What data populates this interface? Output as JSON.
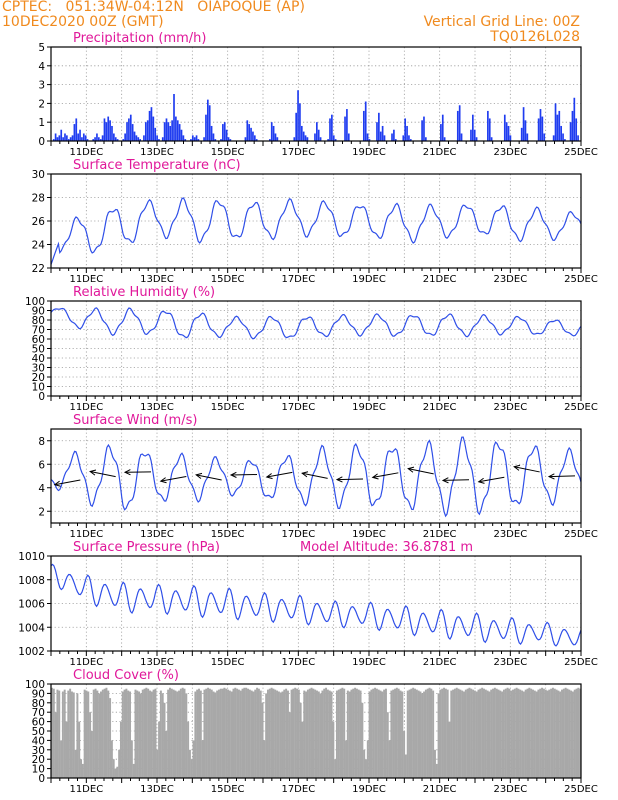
{
  "header": {
    "line1": "CPTEC:   051:34W-04:12N   OIAPOQUE (AP)",
    "line2": "10DEC2020 00Z (GMT)",
    "grid_note": "Vertical Grid Line: 00Z",
    "run_id": "TQ0126L028"
  },
  "colors": {
    "header": "#f08a1e",
    "panel_title": "#e0189a",
    "line": "#2f4fe8",
    "bar": "#1f3cf0",
    "cloud": "#a8a8a8",
    "arrow": "#000000"
  },
  "chart_data": [
    {
      "id": "precip",
      "type": "bar",
      "title": "Precipitation (mm/h)",
      "ylim": [
        0,
        5
      ],
      "yticks": [
        0,
        1,
        2,
        3,
        4,
        5
      ],
      "x_range_days": [
        10,
        25
      ],
      "date_labels": [
        "11DEC",
        "13DEC",
        "15DEC",
        "17DEC",
        "19DEC",
        "21DEC",
        "23DEC",
        "25DEC"
      ],
      "grid": true,
      "values": [
        0,
        0.1,
        0.4,
        0.2,
        0.3,
        0.6,
        0.2,
        0.4,
        0.3,
        0.1,
        0.2,
        0.3,
        0.9,
        1.2,
        0.4,
        0.6,
        0.2,
        0.4,
        0.3,
        0.1,
        0,
        0,
        0.1,
        0.2,
        0.4,
        0.2,
        0.1,
        0.3,
        1.2,
        1.0,
        1.3,
        1.1,
        0.8,
        0.4,
        0.2,
        0.1,
        0,
        0,
        0.1,
        0.4,
        1.0,
        1.2,
        1.4,
        0.9,
        0.5,
        0.3,
        0.2,
        0.1,
        0,
        0.3,
        1.0,
        1.1,
        1.6,
        1.8,
        1.3,
        0.7,
        0.3,
        0.1,
        0,
        0.2,
        1.0,
        1.2,
        1.0,
        0.8,
        1.1,
        2.5,
        1.3,
        1.1,
        0.9,
        0.6,
        0.3,
        0.1,
        0,
        0,
        0.1,
        0.3,
        0.2,
        0.3,
        0.1,
        0,
        0,
        0.2,
        1.4,
        2.2,
        1.9,
        0.8,
        0.4,
        0.1,
        0,
        0,
        0.1,
        0.9,
        1.0,
        0.6,
        0.2,
        0.1,
        0,
        0,
        0,
        0,
        0,
        0,
        0,
        0.2,
        1.1,
        0.9,
        0.7,
        0.5,
        0.3,
        0.1,
        0,
        0,
        0,
        0,
        0,
        0,
        0.1,
        1.0,
        0.8,
        0.4,
        0.2,
        0,
        0,
        0,
        0,
        0,
        0,
        0,
        0,
        0.2,
        1.5,
        2.7,
        2.0,
        0.8,
        0.5,
        0.3,
        0.2,
        0,
        0,
        0,
        0.4,
        1.0,
        0.6,
        0.2,
        0,
        0,
        0,
        0.1,
        1.2,
        1.4,
        0.3,
        0.1,
        0,
        0,
        0,
        0,
        1.3,
        1.7,
        0.4,
        0,
        0,
        0,
        0,
        0,
        0,
        0,
        1.6,
        2.1,
        0.4,
        0.1,
        0,
        0,
        0,
        1.0,
        1.5,
        0.5,
        0.8,
        0.3,
        0,
        0,
        0,
        0.4,
        0.6,
        0.1,
        0,
        0,
        0,
        0.3,
        1.2,
        0.8,
        0.3,
        0.1,
        0,
        0,
        0,
        0,
        0,
        1.1,
        1.3,
        0.2,
        0,
        0,
        0,
        0,
        0,
        0,
        0,
        0.9,
        1.4,
        0.2,
        0,
        0,
        0,
        0,
        0,
        0,
        1.6,
        1.9,
        0.4,
        0,
        0,
        0,
        0,
        0.6,
        1.4,
        0.6,
        0.2,
        0,
        0,
        0,
        0,
        0,
        1.6,
        1.2,
        0.2,
        0,
        0,
        0,
        0,
        0,
        0,
        1.4,
        1.0,
        0.8,
        0.3,
        0,
        0,
        0,
        0,
        0,
        0.7,
        1.8,
        1.1,
        0.4,
        0,
        0,
        0,
        0,
        0,
        1.2,
        1.7,
        1.3,
        0.4,
        0,
        0,
        0,
        0,
        0.3,
        2.0,
        1.4,
        1.6,
        0.8,
        0.4,
        0.1,
        0,
        0,
        1.0,
        1.6,
        2.3,
        1.2,
        0.3,
        0
      ]
    },
    {
      "id": "temp",
      "type": "line",
      "title": "Surface Temperature (nC)",
      "ylim": [
        22,
        30
      ],
      "yticks": [
        22,
        24,
        26,
        28,
        30
      ],
      "x_range_days": [
        10,
        25
      ],
      "date_labels": [
        "11DEC",
        "13DEC",
        "15DEC",
        "17DEC",
        "19DEC",
        "21DEC",
        "23DEC",
        "25DEC"
      ],
      "grid": true,
      "base": [
        24.6,
        24.8,
        25.6,
        26.3,
        26.0,
        26.1,
        26.0,
        26.3,
        26.1,
        26.0,
        25.8,
        25.9,
        26.2,
        25.8,
        25.7,
        25.6
      ],
      "amplitude": [
        1.0,
        1.6,
        1.7,
        1.4,
        1.7,
        1.6,
        1.5,
        1.4,
        1.4,
        1.3,
        1.5,
        1.3,
        1.2,
        1.4,
        1.2,
        1.0
      ],
      "offset_hours": 18
    },
    {
      "id": "rh",
      "type": "line",
      "title": "Relative Humidity (%)",
      "ylim": [
        0,
        100
      ],
      "yticks": [
        0,
        10,
        20,
        30,
        40,
        50,
        60,
        70,
        80,
        90,
        100
      ],
      "x_range_days": [
        10,
        25
      ],
      "date_labels": [
        "11DEC",
        "13DEC",
        "15DEC",
        "17DEC",
        "19DEC",
        "21DEC",
        "23DEC",
        "25DEC"
      ],
      "grid": true,
      "base": [
        88,
        80,
        78,
        78,
        74,
        73,
        72,
        72,
        74,
        75,
        74,
        75,
        74,
        75,
        72,
        72
      ],
      "amplitude": [
        5,
        11,
        13,
        12,
        14,
        9,
        11,
        11,
        10,
        10,
        11,
        11,
        10,
        9,
        8,
        8
      ],
      "offset_hours": 6
    },
    {
      "id": "wind",
      "type": "line",
      "title": "Surface Wind (m/s)",
      "ylim": [
        1,
        9
      ],
      "yticks": [
        2,
        4,
        6,
        8
      ],
      "x_range_days": [
        10,
        25
      ],
      "date_labels": [
        "11DEC",
        "13DEC",
        "15DEC",
        "17DEC",
        "19DEC",
        "21DEC",
        "23DEC",
        "25DEC"
      ],
      "grid": true,
      "base": [
        5.2,
        5.0,
        4.8,
        4.9,
        4.8,
        4.9,
        4.7,
        4.8,
        5.0,
        5.0,
        4.9,
        4.9,
        5.0,
        5.1,
        5.0,
        5.1
      ],
      "amplitude": [
        1.0,
        2.1,
        2.7,
        2.0,
        1.8,
        1.4,
        1.6,
        2.0,
        2.4,
        2.5,
        2.6,
        2.8,
        3.0,
        2.7,
        2.3,
        1.8
      ],
      "offset_hours": 16,
      "vectors": "winds from the east (arrows point west) at each 00Z"
    },
    {
      "id": "psfc",
      "type": "line",
      "title": "Surface Pressure (hPa)",
      "annotation": "Model Altitude: 36.8781 m",
      "ylim": [
        1002,
        1010
      ],
      "yticks": [
        1002,
        1004,
        1006,
        1008,
        1010
      ],
      "x_range_days": [
        10,
        25
      ],
      "date_labels": [
        "11DEC",
        "13DEC",
        "15DEC",
        "17DEC",
        "19DEC",
        "21DEC",
        "23DEC",
        "25DEC"
      ],
      "grid": true,
      "base": [
        1008.5,
        1007.2,
        1006.5,
        1006.4,
        1006.2,
        1006.0,
        1005.7,
        1005.5,
        1005.1,
        1005.0,
        1004.6,
        1004.3,
        1004.0,
        1003.7,
        1003.5,
        1003.0
      ],
      "amplitude": [
        0.9,
        1.3,
        1.4,
        1.3,
        1.4,
        1.4,
        1.3,
        1.3,
        1.2,
        1.2,
        1.3,
        1.3,
        1.3,
        1.2,
        1.0,
        1.0
      ],
      "offset_hours": 1
    },
    {
      "id": "cloud",
      "type": "bar",
      "title": "Cloud Cover (%)",
      "ylim": [
        0,
        100
      ],
      "yticks": [
        0,
        10,
        20,
        30,
        40,
        50,
        60,
        70,
        80,
        90,
        100
      ],
      "x_range_days": [
        10,
        25
      ],
      "date_labels": [
        "11DEC",
        "13DEC",
        "15DEC",
        "17DEC",
        "19DEC",
        "21DEC",
        "23DEC",
        "25DEC"
      ],
      "grid": true,
      "values": [
        96,
        95,
        70,
        94,
        93,
        40,
        92,
        94,
        60,
        93,
        95,
        92,
        91,
        30,
        90,
        60,
        20,
        15,
        94,
        93,
        92,
        70,
        50,
        94,
        95,
        93,
        90,
        92,
        94,
        95,
        96,
        93,
        85,
        40,
        20,
        10,
        12,
        30,
        60,
        92,
        94,
        95,
        93,
        92,
        40,
        15,
        94,
        93,
        92,
        90,
        94,
        95,
        96,
        95,
        93,
        92,
        94,
        95,
        30,
        60,
        93,
        90,
        80,
        50,
        94,
        96,
        95,
        94,
        93,
        92,
        93,
        95,
        96,
        95,
        90,
        60,
        30,
        20,
        40,
        92,
        94,
        95,
        93,
        40,
        94,
        95,
        96,
        95,
        94,
        92,
        91,
        93,
        94,
        95,
        95,
        96,
        95,
        94,
        93,
        92,
        95,
        96,
        95,
        94,
        93,
        95,
        96,
        96,
        95,
        94,
        93,
        92,
        94,
        96,
        95,
        93,
        80,
        40,
        90,
        94,
        95,
        96,
        95,
        94,
        93,
        92,
        91,
        92,
        94,
        95,
        93,
        70,
        94,
        95,
        96,
        95,
        94,
        80,
        60,
        93,
        92,
        94,
        95,
        96,
        95,
        94,
        93,
        92,
        90,
        93,
        95,
        96,
        94,
        93,
        92,
        60,
        20,
        93,
        94,
        95,
        96,
        95,
        40,
        93,
        92,
        94,
        95,
        96,
        95,
        94,
        93,
        80,
        30,
        20,
        40,
        92,
        94,
        95,
        96,
        95,
        94,
        93,
        92,
        94,
        95,
        70,
        40,
        93,
        94,
        95,
        96,
        95,
        93,
        92,
        50,
        25,
        93,
        94,
        95,
        96,
        95,
        94,
        93,
        92,
        90,
        92,
        94,
        95,
        96,
        95,
        93,
        30,
        15,
        90,
        94,
        95,
        96,
        95,
        94,
        60,
        93,
        94,
        95,
        96,
        95,
        94,
        93,
        92,
        94,
        95,
        96,
        95,
        94,
        93,
        92,
        94,
        95,
        96,
        95,
        94,
        93,
        92,
        94,
        95,
        96,
        95,
        94,
        93,
        92,
        94,
        95,
        96,
        95,
        93,
        94,
        95,
        96,
        95,
        94,
        93,
        92,
        94,
        95,
        96,
        95,
        94,
        93,
        92,
        94,
        95,
        96,
        95,
        94,
        93,
        94,
        95,
        96,
        95,
        94,
        93,
        92,
        94,
        95,
        96,
        95,
        94,
        93,
        92,
        94,
        95,
        96,
        95
      ]
    }
  ]
}
